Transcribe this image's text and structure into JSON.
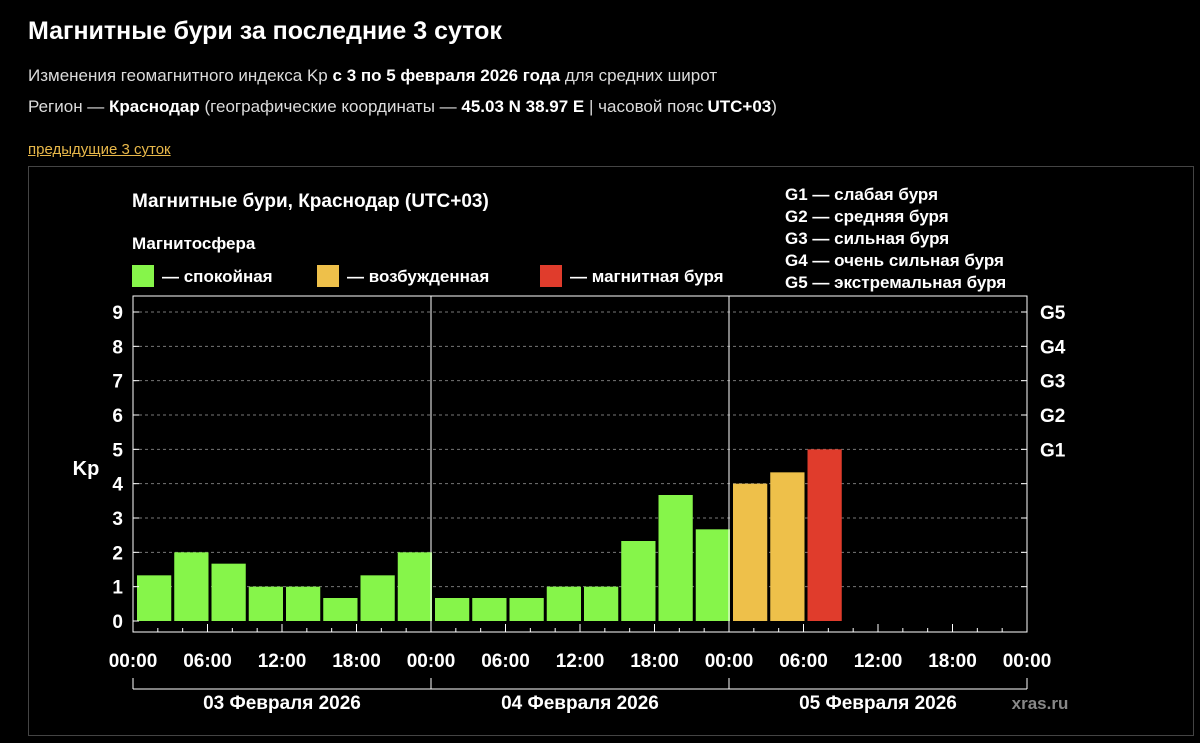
{
  "header": {
    "title": "Магнитные бури за последние 3 суток",
    "line1": {
      "pre": "Изменения геомагнитного индекса Kp",
      "bold": "с 3 по 5 февраля 2026 года",
      "post": "для средних широт"
    },
    "line2": {
      "pre": "Регион —",
      "city": "Краснодар",
      "mid": "(географические координаты —",
      "coords": "45.03 N 38.97 E",
      "tz_pre": "| часовой пояс",
      "tz": "UTC+03",
      "close": ")"
    },
    "prev_link": "предыдущие 3 суток"
  },
  "chart_data": {
    "type": "bar",
    "title": "Магнитные бури, Краснодар (UTC+03)",
    "ylabel": "Kp",
    "ylim": [
      0,
      9
    ],
    "yticks": [
      "0",
      "1",
      "2",
      "3",
      "4",
      "5",
      "6",
      "7",
      "8",
      "9"
    ],
    "grid": true,
    "legend_title": "Магнитосфера",
    "legend": [
      {
        "label": "— спокойная",
        "color": "#86f54a"
      },
      {
        "label": "— возбужденная",
        "color": "#eec04a"
      },
      {
        "label": "— магнитная буря",
        "color": "#e03c2c"
      }
    ],
    "storm_scale": [
      "G1 — слабая буря",
      "G2 — средняя буря",
      "G3 — сильная буря",
      "G4 — очень сильная буря",
      "G5 — экстремальная буря"
    ],
    "g_levels": [
      {
        "label": "G1",
        "kp": 5
      },
      {
        "label": "G2",
        "kp": 6
      },
      {
        "label": "G3",
        "kp": 7
      },
      {
        "label": "G4",
        "kp": 8
      },
      {
        "label": "G5",
        "kp": 9
      }
    ],
    "xticks": [
      "00:00",
      "06:00",
      "12:00",
      "18:00",
      "00:00",
      "06:00",
      "12:00",
      "18:00",
      "00:00",
      "06:00",
      "12:00",
      "18:00",
      "00:00"
    ],
    "days": [
      "03 Февраля 2026",
      "04 Февраля 2026",
      "05 Февраля 2026"
    ],
    "interval_hours": 3,
    "values": [
      1.33,
      2.0,
      1.67,
      1.0,
      1.0,
      0.67,
      1.33,
      2.0,
      0.67,
      0.67,
      0.67,
      1.0,
      1.0,
      2.33,
      3.67,
      2.67,
      4.0,
      4.33,
      5.0
    ],
    "status": [
      "quiet",
      "quiet",
      "quiet",
      "quiet",
      "quiet",
      "quiet",
      "quiet",
      "quiet",
      "quiet",
      "quiet",
      "quiet",
      "quiet",
      "quiet",
      "quiet",
      "quiet",
      "quiet",
      "active",
      "active",
      "storm"
    ],
    "status_colors": {
      "quiet": "#86f54a",
      "active": "#eec04a",
      "storm": "#e03c2c"
    },
    "watermark": "xras.ru"
  }
}
